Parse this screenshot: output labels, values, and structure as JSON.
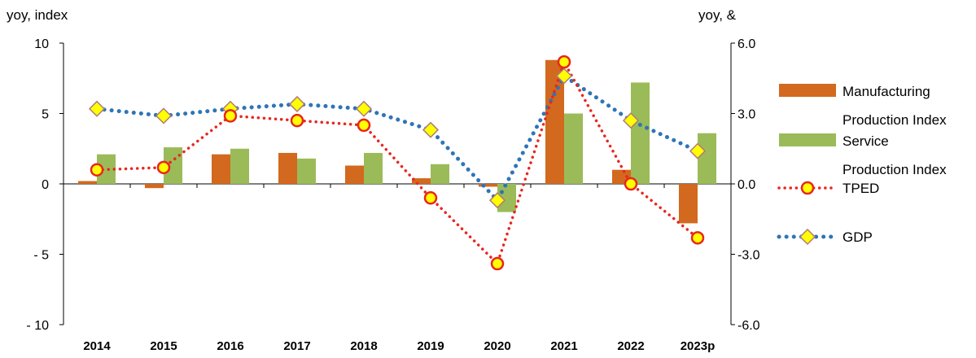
{
  "chart_data": {
    "type": "bar",
    "categories": [
      "2014",
      "2015",
      "2016",
      "2017",
      "2018",
      "2019",
      "2020",
      "2021",
      "2022",
      "2023p"
    ],
    "left_axis": {
      "title": "yoy, index",
      "range": [
        -10,
        10
      ],
      "ticks": [
        10,
        5,
        0,
        -5,
        -10
      ],
      "tick_labels": [
        "10",
        "5",
        "0",
        "- 5",
        "- 10"
      ]
    },
    "right_axis": {
      "title": "yoy, &",
      "range": [
        -6,
        6
      ],
      "ticks": [
        6,
        3,
        0,
        -3,
        -6
      ],
      "tick_labels": [
        "6.0",
        "3.0",
        "0.0",
        "-3.0",
        "-6.0"
      ]
    },
    "series": [
      {
        "name": "Manufacturing Production Index",
        "legend_lines": [
          "Manufacturing",
          "Production Index"
        ],
        "type": "bar",
        "axis": "left",
        "color": "#D2691E",
        "values": [
          0.2,
          -0.3,
          2.1,
          2.2,
          1.3,
          0.4,
          -0.2,
          8.8,
          1.0,
          -2.8
        ]
      },
      {
        "name": "Service Production Index",
        "legend_lines": [
          "Service",
          "Production Index"
        ],
        "type": "bar",
        "axis": "left",
        "color": "#9BBB59",
        "values": [
          2.1,
          2.6,
          2.5,
          1.8,
          2.2,
          1.4,
          -2.0,
          5.0,
          7.2,
          3.6
        ]
      },
      {
        "name": "TPED",
        "legend_lines": [
          "TPED"
        ],
        "type": "line",
        "axis": "right",
        "color": "#E8261F",
        "marker": "circle",
        "marker_fill": "#FFFF00",
        "values": [
          0.6,
          0.7,
          2.9,
          2.7,
          2.5,
          -0.6,
          -3.4,
          5.2,
          0.0,
          -2.3
        ]
      },
      {
        "name": "GDP",
        "legend_lines": [
          "GDP"
        ],
        "type": "line",
        "axis": "right",
        "color": "#2E75B6",
        "marker": "diamond",
        "marker_fill": "#FFFF00",
        "values": [
          3.2,
          2.9,
          3.2,
          3.4,
          3.2,
          2.3,
          -0.7,
          4.6,
          2.7,
          1.4
        ]
      }
    ],
    "legend_position": "right",
    "grid": false
  }
}
